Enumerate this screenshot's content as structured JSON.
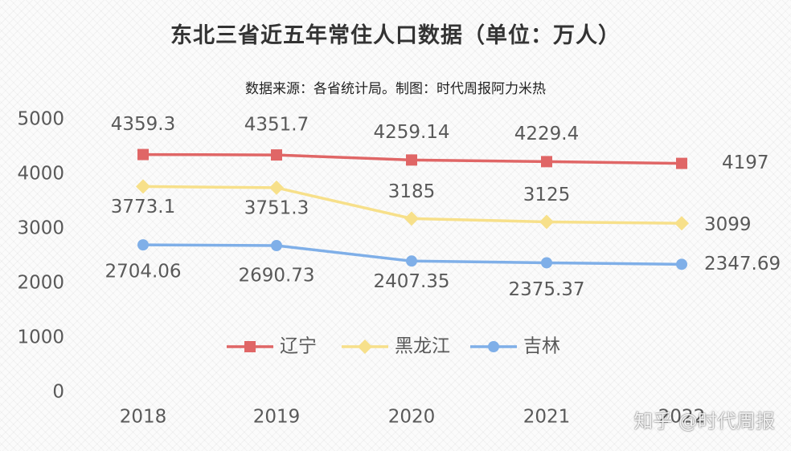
{
  "title": "东北三省近五年常住人口数据（单位：万人）",
  "subtitle": "数据来源：各省统计局。制图：时代周报阿力米热",
  "watermark": "知乎 @时代周报",
  "chart_data": {
    "type": "line",
    "title": "东北三省近五年常住人口数据（单位：万人）",
    "subtitle": "数据来源：各省统计局。制图：时代周报阿力米热",
    "categories": [
      "2018",
      "2019",
      "2020",
      "2021",
      "2022"
    ],
    "yticks": [
      "0",
      "1000",
      "2000",
      "3000",
      "4000",
      "5000"
    ],
    "ylim": [
      0,
      5000
    ],
    "grid": false,
    "legend_position": "center",
    "series": [
      {
        "name": "辽宁",
        "marker": "square",
        "color": "#e06666",
        "values": [
          4359.3,
          4351.7,
          4259.14,
          4229.4,
          4197
        ],
        "labels": [
          "4359.3",
          "4351.7",
          "4259.14",
          "4229.4",
          "4197"
        ]
      },
      {
        "name": "黑龙江",
        "marker": "diamond",
        "color": "#f7e08a",
        "values": [
          3773.1,
          3751.3,
          3185,
          3125,
          3099
        ],
        "labels": [
          "3773.1",
          "3751.3",
          "3185",
          "3125",
          "3099"
        ]
      },
      {
        "name": "吉林",
        "marker": "circle",
        "color": "#7fafe8",
        "values": [
          2704.06,
          2690.73,
          2407.35,
          2375.37,
          2347.69
        ],
        "labels": [
          "2704.06",
          "2690.73",
          "2407.35",
          "2375.37",
          "2347.69"
        ]
      }
    ]
  }
}
